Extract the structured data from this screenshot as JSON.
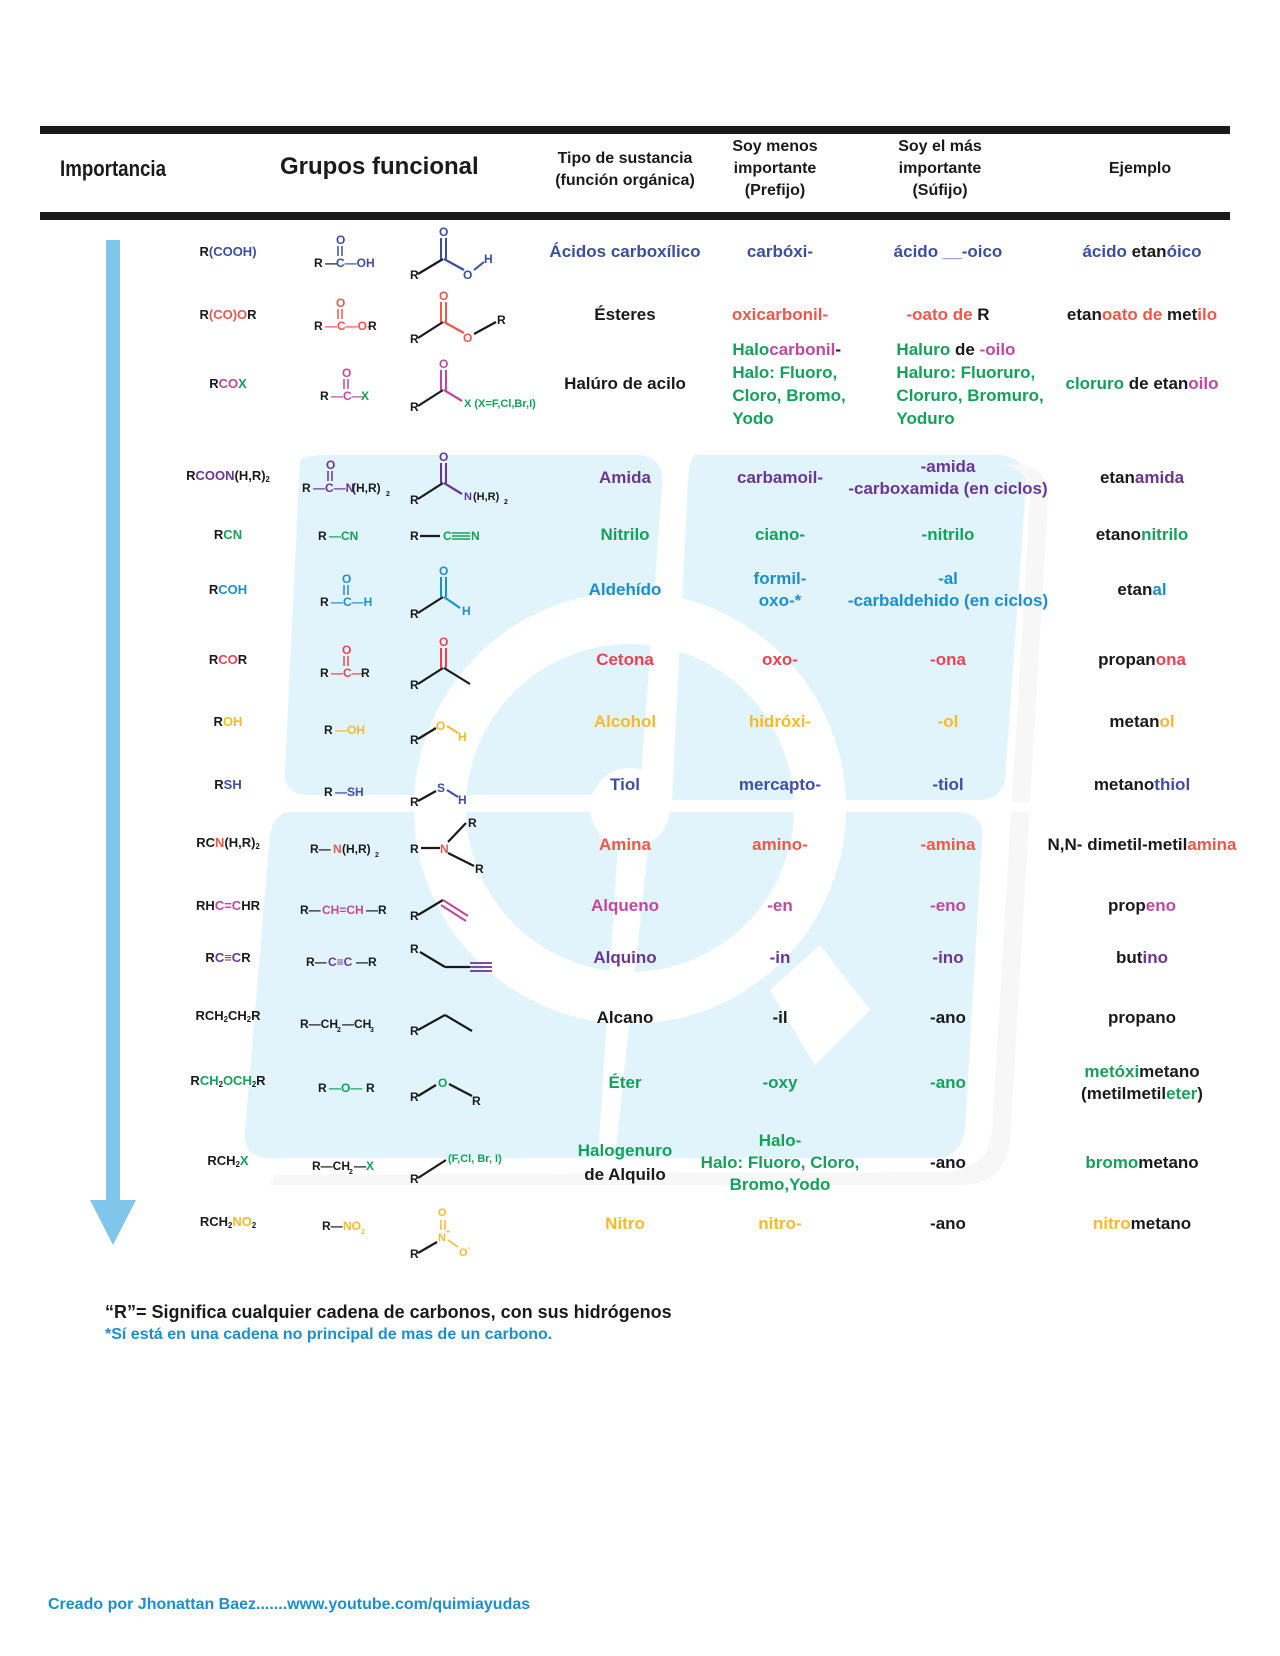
{
  "header": {
    "importance": "Importancia",
    "groups": "Grupos funcional",
    "type_l1": "Tipo de sustancia",
    "type_l2": "(función orgánica)",
    "prefix_l1": "Soy menos",
    "prefix_l2": "importante",
    "prefix_l3": "(Prefijo)",
    "suffix_l1": "Soy el más",
    "suffix_l2": "importante",
    "suffix_l3": "(Súfijo)",
    "example": "Ejemplo"
  },
  "colors": {
    "header_bar": "#1a1a1a",
    "arrow": "#80c5ea",
    "watermark": "#e2f4fb",
    "carboxylic": "#3a4fa3",
    "ester": "#f0564a",
    "acyl_halide_mag": "#c2479f",
    "green": "#12a35a",
    "amide": "#6a3596",
    "aldehyde": "#1b8fcf",
    "ketone": "#ec4250",
    "alcohol": "#f8b92a",
    "thiol": "#3f4ea6"
  },
  "rows": [
    {
      "id": "carboxylic",
      "condensed": [
        [
          "R",
          "k"
        ],
        [
          "(COOH)",
          "blue"
        ]
      ],
      "formula": "R—C—OH",
      "type": [
        "Ácidos carboxílico"
      ],
      "prefix": [
        "carbóxi-"
      ],
      "suffix": [
        "ácido __-oico"
      ],
      "example": [
        [
          "ácido ",
          "blue"
        ],
        [
          "etan",
          "k"
        ],
        [
          "óico",
          "blue"
        ]
      ],
      "color": "blue"
    },
    {
      "id": "ester",
      "condensed": [
        [
          "R",
          "k"
        ],
        [
          "(CO)O",
          "red"
        ],
        [
          "R",
          "k"
        ]
      ],
      "formula": "R—C—O-R",
      "type": [
        "Ésteres"
      ],
      "prefix": [
        "oxicarbonil-"
      ],
      "suffix_parts": [
        [
          "-oato de ",
          "red"
        ],
        [
          "R",
          "k"
        ]
      ],
      "example": [
        [
          "etan",
          "k"
        ],
        [
          "oato de ",
          "red"
        ],
        [
          "met",
          "k"
        ],
        [
          "ilo",
          "red"
        ]
      ],
      "color": "red"
    },
    {
      "id": "acyl_halide",
      "condensed": [
        [
          "R",
          "k"
        ],
        [
          "CO",
          "mag"
        ],
        [
          "X",
          "grn"
        ]
      ],
      "formula": "R—C—X",
      "struct_label": "X (X=F,Cl,Br,I)",
      "type": [
        "Halúro de acilo"
      ],
      "prefix_lines": [
        [
          [
            "Halo",
            "grn"
          ],
          [
            "carbonil",
            "mag"
          ],
          [
            "-",
            "k"
          ]
        ],
        [
          [
            "Halo: Fluoro,",
            "grn"
          ]
        ],
        [
          [
            "Cloro, Bromo,",
            "grn"
          ]
        ],
        [
          [
            "Yodo",
            "grn"
          ]
        ]
      ],
      "suffix_lines": [
        [
          [
            "Haluro",
            "grn"
          ],
          [
            " de ",
            "k"
          ],
          [
            "-oilo",
            "mag"
          ]
        ],
        [
          [
            "Haluro: Fluoruro,",
            "grn"
          ]
        ],
        [
          [
            "Cloruro, Bromuro,",
            "grn"
          ]
        ],
        [
          [
            "Yoduro",
            "grn"
          ]
        ]
      ],
      "example": [
        [
          "cloruro",
          "grn"
        ],
        [
          " de etan",
          "k"
        ],
        [
          "oilo",
          "mag"
        ]
      ]
    },
    {
      "id": "amide",
      "condensed": [
        [
          "R",
          "k"
        ],
        [
          "COON",
          "purp"
        ],
        [
          "(H,R)",
          "k"
        ],
        [
          "2",
          "sub"
        ]
      ],
      "formula": "R—C—N(H,R)₂",
      "struct_label": "N(H,R)₂",
      "type": [
        "Amida"
      ],
      "prefix": [
        "carbamoil-"
      ],
      "suffix": [
        "-amida",
        "-carboxamida (en ciclos)"
      ],
      "example": [
        [
          "etan",
          "k"
        ],
        [
          "amida",
          "purp"
        ]
      ],
      "color": "purp"
    },
    {
      "id": "nitrile",
      "condensed": [
        [
          "R",
          "k"
        ],
        [
          "CN",
          "grn"
        ]
      ],
      "formula": "R—CN",
      "struct_label": "R—C≡N",
      "type": [
        "Nitrilo"
      ],
      "prefix": [
        "ciano-"
      ],
      "suffix": [
        "-nitrilo"
      ],
      "example": [
        [
          "etano",
          "k"
        ],
        [
          "nitrilo",
          "grn"
        ]
      ],
      "color": "grn"
    },
    {
      "id": "aldehyde",
      "condensed": [
        [
          "R",
          "k"
        ],
        [
          "COH",
          "cyan"
        ]
      ],
      "formula": "R—C—H",
      "type": [
        "Aldehído"
      ],
      "prefix": [
        "formil-",
        "oxo-*"
      ],
      "suffix": [
        "-al",
        "-carbaldehido (en ciclos)"
      ],
      "example": [
        [
          "etan",
          "k"
        ],
        [
          "al",
          "cyan"
        ]
      ],
      "color": "cyan"
    },
    {
      "id": "ketone",
      "condensed": [
        [
          "R",
          "k"
        ],
        [
          "CO",
          "crim"
        ],
        [
          "R",
          "k"
        ]
      ],
      "formula": "R—C—R",
      "type": [
        "Cetona"
      ],
      "prefix": [
        "oxo-"
      ],
      "suffix": [
        "-ona"
      ],
      "example": [
        [
          "propan",
          "k"
        ],
        [
          "ona",
          "crim"
        ]
      ],
      "color": "crim"
    },
    {
      "id": "alcohol",
      "condensed": [
        [
          "R",
          "k"
        ],
        [
          "OH",
          "yel"
        ]
      ],
      "formula": "R—OH",
      "type": [
        "Alcohol"
      ],
      "prefix": [
        "hidróxi-"
      ],
      "suffix": [
        "-ol"
      ],
      "example": [
        [
          "metan",
          "k"
        ],
        [
          "ol",
          "yel"
        ]
      ],
      "color": "yel"
    },
    {
      "id": "thiol",
      "condensed": [
        [
          "R",
          "k"
        ],
        [
          "SH",
          "ind"
        ]
      ],
      "formula": "R—SH",
      "type": [
        "Tiol"
      ],
      "prefix": [
        "mercapto-"
      ],
      "suffix": [
        "-tiol"
      ],
      "example": [
        [
          "metano",
          "k"
        ],
        [
          "thiol",
          "ind"
        ]
      ],
      "color": "ind"
    },
    {
      "id": "amine",
      "condensed": [
        [
          "RC",
          "k"
        ],
        [
          "N",
          "rose"
        ],
        [
          "(H,R)",
          "k"
        ],
        [
          "2",
          "sub"
        ]
      ],
      "formula": "R—N(H,R)₂",
      "type": [
        "Amina"
      ],
      "prefix": [
        "amino-"
      ],
      "suffix": [
        "-amina"
      ],
      "example": [
        [
          "N,N- dimetil-metil",
          "k"
        ],
        [
          "amina",
          "rose"
        ]
      ],
      "color": "rose"
    },
    {
      "id": "alkene",
      "condensed": [
        [
          "RH",
          "k"
        ],
        [
          "C=C",
          "mag"
        ],
        [
          "HR",
          "k"
        ]
      ],
      "formula": "R—CH=CH—R",
      "type": [
        "Alqueno"
      ],
      "prefix": [
        "-en"
      ],
      "suffix": [
        "-eno"
      ],
      "example": [
        [
          "prop",
          "k"
        ],
        [
          "eno",
          "mag"
        ]
      ],
      "color": "mag"
    },
    {
      "id": "alkyne",
      "condensed": [
        [
          "R",
          "k"
        ],
        [
          "C≡C",
          "purp"
        ],
        [
          "R",
          "k"
        ]
      ],
      "formula": "R—C≡C—R",
      "type": [
        "Alquino"
      ],
      "prefix": [
        "-in"
      ],
      "suffix": [
        "-ino"
      ],
      "example": [
        [
          "but",
          "k"
        ],
        [
          "ino",
          "purp"
        ]
      ],
      "color": "purp"
    },
    {
      "id": "alkane",
      "condensed": [
        [
          "RCH",
          "k"
        ],
        [
          "2",
          "sub"
        ],
        [
          "CH",
          "k"
        ],
        [
          "2",
          "sub"
        ],
        [
          "R",
          "k"
        ]
      ],
      "formula": "R—CH₂—CH₃",
      "type": [
        "Alcano"
      ],
      "prefix": [
        "-il"
      ],
      "suffix": [
        "-ano"
      ],
      "example": [
        [
          "propano",
          "k"
        ]
      ],
      "color": "k"
    },
    {
      "id": "ether",
      "condensed": [
        [
          "R",
          "k"
        ],
        [
          "CH",
          "grn"
        ],
        [
          "2",
          "sub"
        ],
        [
          "OCH",
          "grn"
        ],
        [
          "2",
          "sub"
        ],
        [
          "R",
          "k"
        ]
      ],
      "formula": "R—O—R",
      "type": [
        "Éter"
      ],
      "prefix": [
        "-oxy"
      ],
      "suffix": [
        "-ano"
      ],
      "example_lines": [
        [
          [
            "metóxi",
            "grn"
          ],
          [
            "metano",
            "k"
          ]
        ],
        [
          [
            "(metilmetil",
            "k"
          ],
          [
            "eter",
            "grn"
          ],
          [
            ")",
            "k"
          ]
        ]
      ],
      "color": "grn"
    },
    {
      "id": "alkyl_halide",
      "condensed": [
        [
          "RCH",
          "k"
        ],
        [
          "2",
          "sub"
        ],
        [
          "X",
          "grn"
        ]
      ],
      "formula": "R—CH₂—X",
      "struct_label": "(F,Cl, Br, I)",
      "type_lines": [
        [
          [
            "Halogenuro",
            "grn"
          ]
        ],
        [
          [
            "de Alquilo",
            "k"
          ]
        ]
      ],
      "prefix": [
        "Halo-",
        "Halo: Fluoro, Cloro,",
        "Bromo,Yodo"
      ],
      "suffix": [
        "-ano"
      ],
      "example": [
        [
          "bromo",
          "grn"
        ],
        [
          "metano",
          "k"
        ]
      ],
      "color": "grn"
    },
    {
      "id": "nitro",
      "condensed": [
        [
          "RCH",
          "k"
        ],
        [
          "2",
          "sub"
        ],
        [
          "NO",
          "yel"
        ],
        [
          "2",
          "sub"
        ]
      ],
      "formula": "R—NO₂",
      "type": [
        "Nitro"
      ],
      "prefix": [
        "nitro-"
      ],
      "suffix": [
        "-ano"
      ],
      "example": [
        [
          "nitro",
          "yel"
        ],
        [
          "metano",
          "k"
        ]
      ],
      "color": "yel"
    }
  ],
  "footnotes": {
    "r_definition": "“R”= Significa cualquier cadena de carbonos, con sus hidrógenos",
    "asterisk": "*Sí está en una cadena no principal de mas de un carbono."
  },
  "credit": "Creado por Jhonattan Baez.......www.youtube.com/quimiayudas"
}
